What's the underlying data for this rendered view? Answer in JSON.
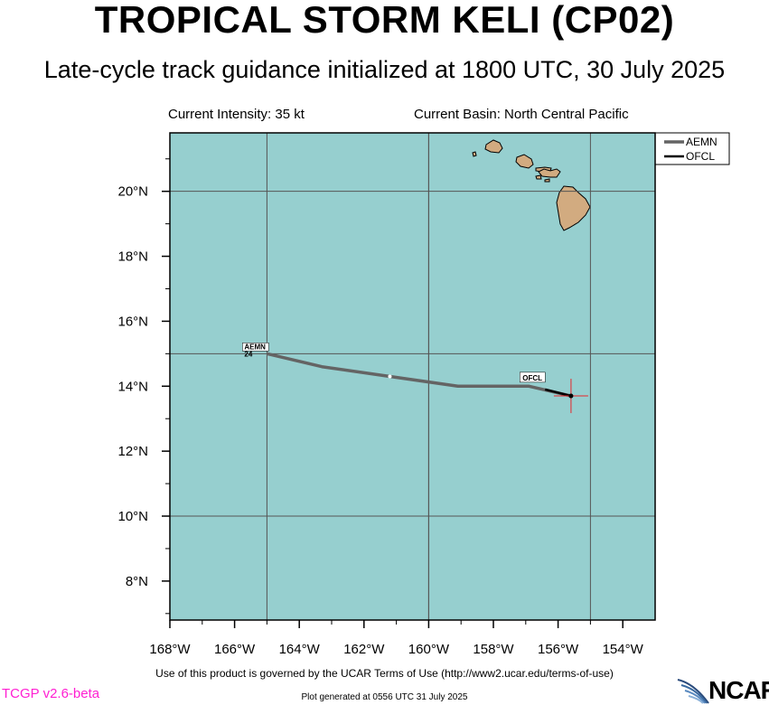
{
  "title": "TROPICAL STORM KELI (CP02)",
  "subtitle": "Late-cycle track guidance initialized at 1800 UTC, 30 July 2025",
  "info": {
    "intensity": "Current Intensity: 35 kt",
    "basin": "Current Basin: North Central Pacific"
  },
  "footer": {
    "terms": "Use of this product is governed by the UCAR Terms of Use (http://www2.ucar.edu/terms-of-use)",
    "version": "TCGP v2.6-beta",
    "generated": "Plot generated at 0556 UTC   31 July 2025",
    "logo": "NCAR"
  },
  "colors": {
    "ocean": "#96cfcf",
    "land": "#d2ab80",
    "track": "#646464",
    "ofcl": "#000000",
    "position_marker": "#e8262a"
  },
  "chart_data": {
    "type": "line",
    "xlim": [
      -168,
      -153
    ],
    "ylim": [
      6.8,
      21.8
    ],
    "x_ticks": [
      -168,
      -166,
      -164,
      -162,
      -160,
      -158,
      -156,
      -154
    ],
    "x_tick_labels": [
      "168°W",
      "166°W",
      "164°W",
      "162°W",
      "160°W",
      "158°W",
      "156°W",
      "154°W"
    ],
    "y_ticks": [
      8,
      10,
      12,
      14,
      16,
      18,
      20
    ],
    "y_tick_labels": [
      "8°N",
      "10°N",
      "12°N",
      "14°N",
      "16°N",
      "18°N",
      "20°N"
    ],
    "grid": true,
    "legend_position": "top-right",
    "current_position": {
      "lon": -155.6,
      "lat": 13.7
    },
    "series": [
      {
        "name": "AEMN",
        "lon": [
          -155.6,
          -156.9,
          -159.1,
          -161.2,
          -163.3,
          -165.0
        ],
        "lat": [
          13.7,
          14.0,
          14.0,
          14.3,
          14.6,
          15.0
        ],
        "mid_marker": {
          "lon": -161.2,
          "lat": 14.3
        },
        "end_label": "AEMN",
        "end_hour": "24"
      },
      {
        "name": "OFCL",
        "lon": [
          -155.6,
          -156.4
        ],
        "lat": [
          13.7,
          13.9
        ],
        "end_label": "OFCL"
      }
    ]
  }
}
